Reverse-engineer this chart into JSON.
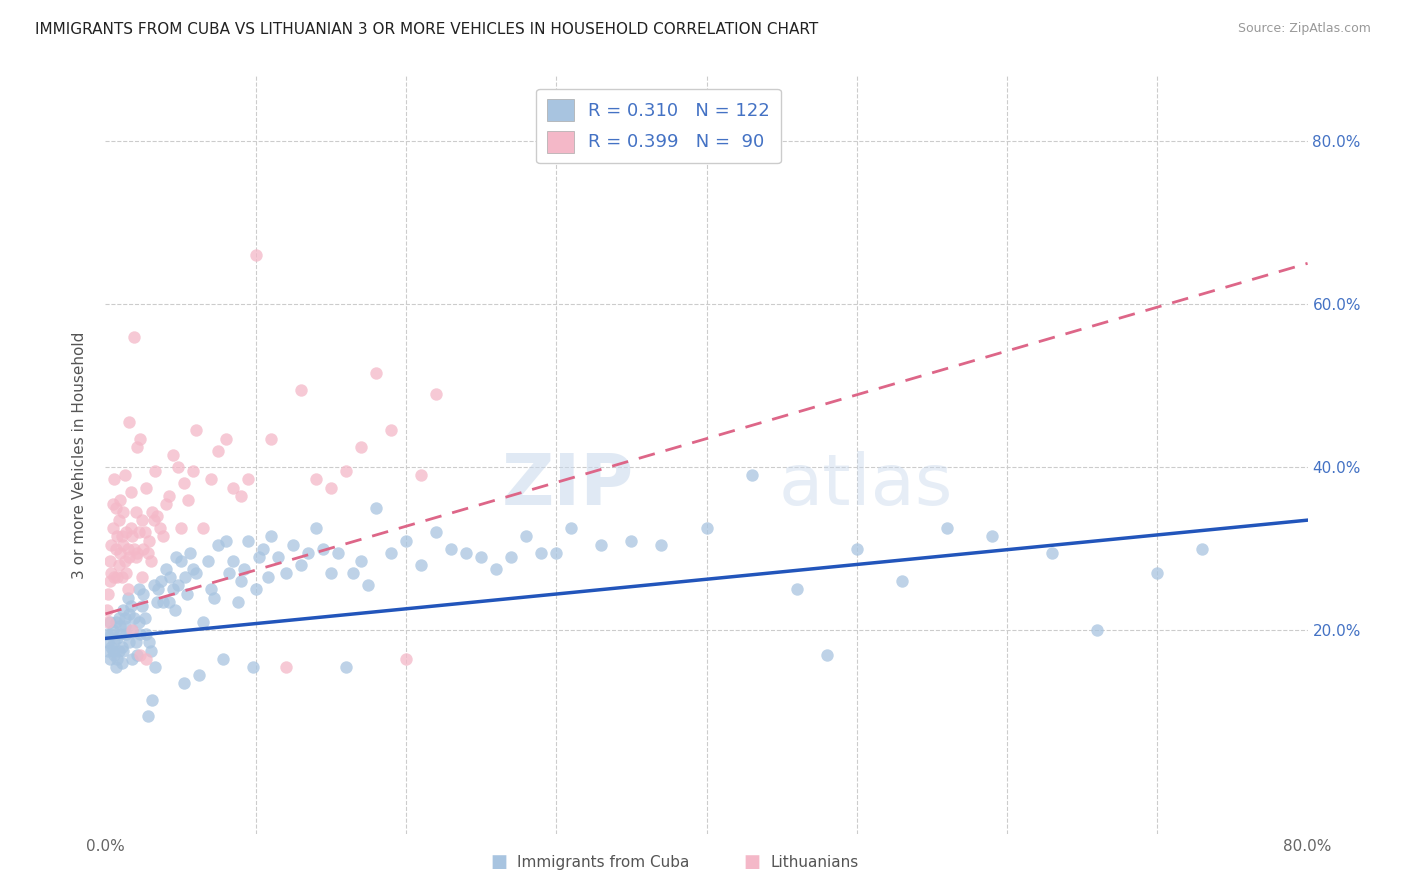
{
  "title": "IMMIGRANTS FROM CUBA VS LITHUANIAN 3 OR MORE VEHICLES IN HOUSEHOLD CORRELATION CHART",
  "source": "Source: ZipAtlas.com",
  "ylabel": "3 or more Vehicles in Household",
  "xlim": [
    0.0,
    0.8
  ],
  "ylim": [
    -0.05,
    0.88
  ],
  "watermark_zip": "ZIP",
  "watermark_atlas": "atlas",
  "cuba_color": "#a8c4e0",
  "lith_color": "#f4b8c8",
  "cuba_line_color": "#2255bb",
  "lith_line_color": "#dd6688",
  "cuba_scatter": [
    [
      0.001,
      0.195
    ],
    [
      0.002,
      0.185
    ],
    [
      0.002,
      0.175
    ],
    [
      0.003,
      0.21
    ],
    [
      0.003,
      0.165
    ],
    [
      0.004,
      0.18
    ],
    [
      0.004,
      0.195
    ],
    [
      0.005,
      0.175
    ],
    [
      0.005,
      0.2
    ],
    [
      0.006,
      0.185
    ],
    [
      0.006,
      0.17
    ],
    [
      0.007,
      0.21
    ],
    [
      0.007,
      0.155
    ],
    [
      0.008,
      0.19
    ],
    [
      0.008,
      0.165
    ],
    [
      0.009,
      0.175
    ],
    [
      0.009,
      0.215
    ],
    [
      0.01,
      0.195
    ],
    [
      0.01,
      0.205
    ],
    [
      0.011,
      0.18
    ],
    [
      0.011,
      0.16
    ],
    [
      0.012,
      0.225
    ],
    [
      0.012,
      0.175
    ],
    [
      0.013,
      0.205
    ],
    [
      0.013,
      0.215
    ],
    [
      0.014,
      0.195
    ],
    [
      0.015,
      0.24
    ],
    [
      0.016,
      0.22
    ],
    [
      0.016,
      0.185
    ],
    [
      0.017,
      0.23
    ],
    [
      0.018,
      0.2
    ],
    [
      0.018,
      0.165
    ],
    [
      0.019,
      0.215
    ],
    [
      0.02,
      0.185
    ],
    [
      0.021,
      0.17
    ],
    [
      0.022,
      0.21
    ],
    [
      0.022,
      0.25
    ],
    [
      0.023,
      0.195
    ],
    [
      0.024,
      0.23
    ],
    [
      0.025,
      0.245
    ],
    [
      0.026,
      0.215
    ],
    [
      0.027,
      0.195
    ],
    [
      0.028,
      0.095
    ],
    [
      0.029,
      0.185
    ],
    [
      0.03,
      0.175
    ],
    [
      0.031,
      0.115
    ],
    [
      0.032,
      0.255
    ],
    [
      0.033,
      0.155
    ],
    [
      0.034,
      0.235
    ],
    [
      0.035,
      0.25
    ],
    [
      0.037,
      0.26
    ],
    [
      0.038,
      0.235
    ],
    [
      0.04,
      0.275
    ],
    [
      0.042,
      0.235
    ],
    [
      0.043,
      0.265
    ],
    [
      0.045,
      0.25
    ],
    [
      0.046,
      0.225
    ],
    [
      0.047,
      0.29
    ],
    [
      0.048,
      0.255
    ],
    [
      0.05,
      0.285
    ],
    [
      0.052,
      0.135
    ],
    [
      0.053,
      0.265
    ],
    [
      0.054,
      0.245
    ],
    [
      0.056,
      0.295
    ],
    [
      0.058,
      0.275
    ],
    [
      0.06,
      0.27
    ],
    [
      0.062,
      0.145
    ],
    [
      0.065,
      0.21
    ],
    [
      0.068,
      0.285
    ],
    [
      0.07,
      0.25
    ],
    [
      0.072,
      0.24
    ],
    [
      0.075,
      0.305
    ],
    [
      0.078,
      0.165
    ],
    [
      0.08,
      0.31
    ],
    [
      0.082,
      0.27
    ],
    [
      0.085,
      0.285
    ],
    [
      0.088,
      0.235
    ],
    [
      0.09,
      0.26
    ],
    [
      0.092,
      0.275
    ],
    [
      0.095,
      0.31
    ],
    [
      0.098,
      0.155
    ],
    [
      0.1,
      0.25
    ],
    [
      0.102,
      0.29
    ],
    [
      0.105,
      0.3
    ],
    [
      0.108,
      0.265
    ],
    [
      0.11,
      0.315
    ],
    [
      0.115,
      0.29
    ],
    [
      0.12,
      0.27
    ],
    [
      0.125,
      0.305
    ],
    [
      0.13,
      0.28
    ],
    [
      0.135,
      0.295
    ],
    [
      0.14,
      0.325
    ],
    [
      0.145,
      0.3
    ],
    [
      0.15,
      0.27
    ],
    [
      0.155,
      0.295
    ],
    [
      0.16,
      0.155
    ],
    [
      0.165,
      0.27
    ],
    [
      0.17,
      0.285
    ],
    [
      0.175,
      0.255
    ],
    [
      0.18,
      0.35
    ],
    [
      0.19,
      0.295
    ],
    [
      0.2,
      0.31
    ],
    [
      0.21,
      0.28
    ],
    [
      0.22,
      0.32
    ],
    [
      0.23,
      0.3
    ],
    [
      0.24,
      0.295
    ],
    [
      0.25,
      0.29
    ],
    [
      0.26,
      0.275
    ],
    [
      0.27,
      0.29
    ],
    [
      0.28,
      0.315
    ],
    [
      0.29,
      0.295
    ],
    [
      0.3,
      0.295
    ],
    [
      0.31,
      0.325
    ],
    [
      0.33,
      0.305
    ],
    [
      0.35,
      0.31
    ],
    [
      0.37,
      0.305
    ],
    [
      0.4,
      0.325
    ],
    [
      0.43,
      0.39
    ],
    [
      0.46,
      0.25
    ],
    [
      0.48,
      0.17
    ],
    [
      0.5,
      0.3
    ],
    [
      0.53,
      0.26
    ],
    [
      0.56,
      0.325
    ],
    [
      0.59,
      0.315
    ],
    [
      0.63,
      0.295
    ],
    [
      0.66,
      0.2
    ],
    [
      0.7,
      0.27
    ],
    [
      0.73,
      0.3
    ]
  ],
  "lith_scatter": [
    [
      0.001,
      0.225
    ],
    [
      0.002,
      0.245
    ],
    [
      0.002,
      0.21
    ],
    [
      0.003,
      0.26
    ],
    [
      0.003,
      0.285
    ],
    [
      0.004,
      0.27
    ],
    [
      0.004,
      0.305
    ],
    [
      0.005,
      0.325
    ],
    [
      0.005,
      0.355
    ],
    [
      0.006,
      0.265
    ],
    [
      0.006,
      0.385
    ],
    [
      0.007,
      0.35
    ],
    [
      0.007,
      0.3
    ],
    [
      0.008,
      0.265
    ],
    [
      0.008,
      0.315
    ],
    [
      0.009,
      0.28
    ],
    [
      0.009,
      0.335
    ],
    [
      0.01,
      0.36
    ],
    [
      0.01,
      0.295
    ],
    [
      0.011,
      0.315
    ],
    [
      0.011,
      0.265
    ],
    [
      0.012,
      0.305
    ],
    [
      0.012,
      0.345
    ],
    [
      0.013,
      0.285
    ],
    [
      0.013,
      0.39
    ],
    [
      0.014,
      0.32
    ],
    [
      0.014,
      0.27
    ],
    [
      0.015,
      0.3
    ],
    [
      0.015,
      0.25
    ],
    [
      0.016,
      0.29
    ],
    [
      0.016,
      0.455
    ],
    [
      0.017,
      0.325
    ],
    [
      0.017,
      0.37
    ],
    [
      0.018,
      0.315
    ],
    [
      0.018,
      0.2
    ],
    [
      0.019,
      0.56
    ],
    [
      0.019,
      0.3
    ],
    [
      0.02,
      0.345
    ],
    [
      0.02,
      0.29
    ],
    [
      0.021,
      0.425
    ],
    [
      0.021,
      0.295
    ],
    [
      0.022,
      0.32
    ],
    [
      0.023,
      0.17
    ],
    [
      0.023,
      0.435
    ],
    [
      0.024,
      0.335
    ],
    [
      0.024,
      0.265
    ],
    [
      0.025,
      0.3
    ],
    [
      0.026,
      0.32
    ],
    [
      0.027,
      0.375
    ],
    [
      0.027,
      0.165
    ],
    [
      0.028,
      0.295
    ],
    [
      0.029,
      0.31
    ],
    [
      0.03,
      0.285
    ],
    [
      0.031,
      0.345
    ],
    [
      0.032,
      0.335
    ],
    [
      0.033,
      0.395
    ],
    [
      0.034,
      0.34
    ],
    [
      0.036,
      0.325
    ],
    [
      0.038,
      0.315
    ],
    [
      0.04,
      0.355
    ],
    [
      0.042,
      0.365
    ],
    [
      0.045,
      0.415
    ],
    [
      0.048,
      0.4
    ],
    [
      0.05,
      0.325
    ],
    [
      0.052,
      0.38
    ],
    [
      0.055,
      0.36
    ],
    [
      0.058,
      0.395
    ],
    [
      0.06,
      0.445
    ],
    [
      0.065,
      0.325
    ],
    [
      0.07,
      0.385
    ],
    [
      0.075,
      0.42
    ],
    [
      0.08,
      0.435
    ],
    [
      0.085,
      0.375
    ],
    [
      0.09,
      0.365
    ],
    [
      0.095,
      0.385
    ],
    [
      0.1,
      0.66
    ],
    [
      0.11,
      0.435
    ],
    [
      0.12,
      0.155
    ],
    [
      0.13,
      0.495
    ],
    [
      0.14,
      0.385
    ],
    [
      0.15,
      0.375
    ],
    [
      0.16,
      0.395
    ],
    [
      0.17,
      0.425
    ],
    [
      0.18,
      0.515
    ],
    [
      0.19,
      0.445
    ],
    [
      0.2,
      0.165
    ],
    [
      0.21,
      0.39
    ],
    [
      0.22,
      0.49
    ]
  ]
}
